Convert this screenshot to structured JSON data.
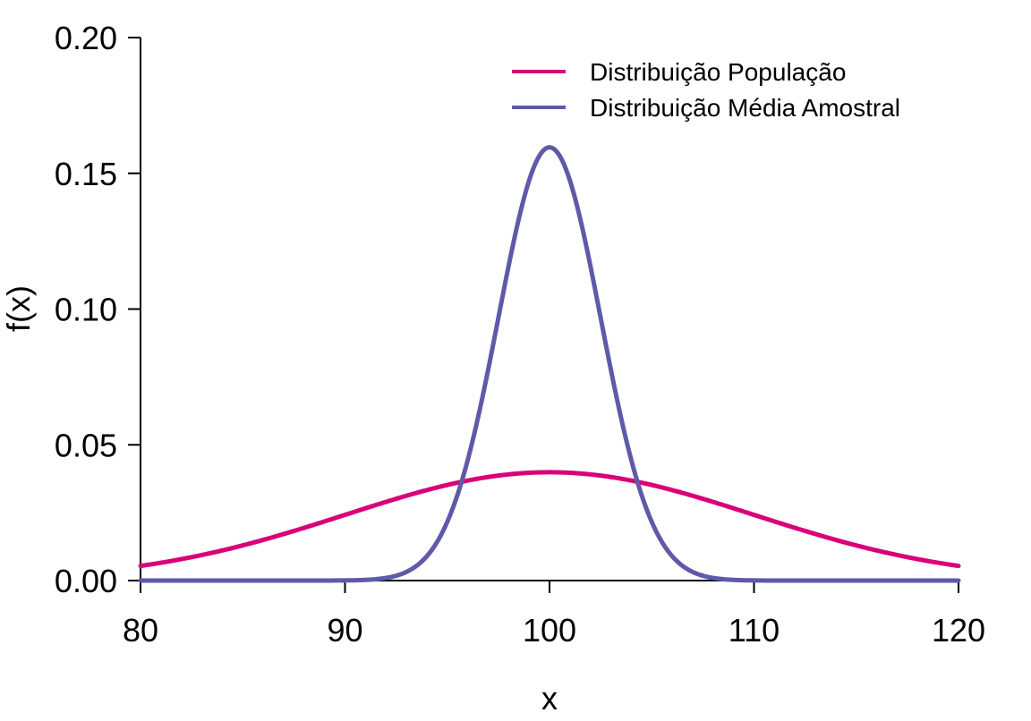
{
  "chart_data": {
    "type": "line",
    "title": "",
    "xlabel": "x",
    "ylabel": "f(x)",
    "xlim": [
      80,
      120
    ],
    "ylim": [
      0,
      0.2
    ],
    "x_ticks": [
      80,
      90,
      100,
      110,
      120
    ],
    "x_tick_labels": [
      "80",
      "90",
      "100",
      "110",
      "120"
    ],
    "y_ticks": [
      0,
      0.05,
      0.1,
      0.15,
      0.2
    ],
    "y_tick_labels": [
      "0.00",
      "0.05",
      "0.10",
      "0.15",
      "0.20"
    ],
    "grid": false,
    "legend_position": "top-right",
    "series": [
      {
        "name": "Distribuição População",
        "color": "#D9007A",
        "distribution": "normal",
        "mean": 100,
        "sd": 10,
        "peak": 0.0399
      },
      {
        "name": "Distribuição Média Amostral",
        "color": "#5E5AA8",
        "distribution": "normal",
        "mean": 100,
        "sd": 2.5,
        "peak": 0.1596
      }
    ]
  }
}
